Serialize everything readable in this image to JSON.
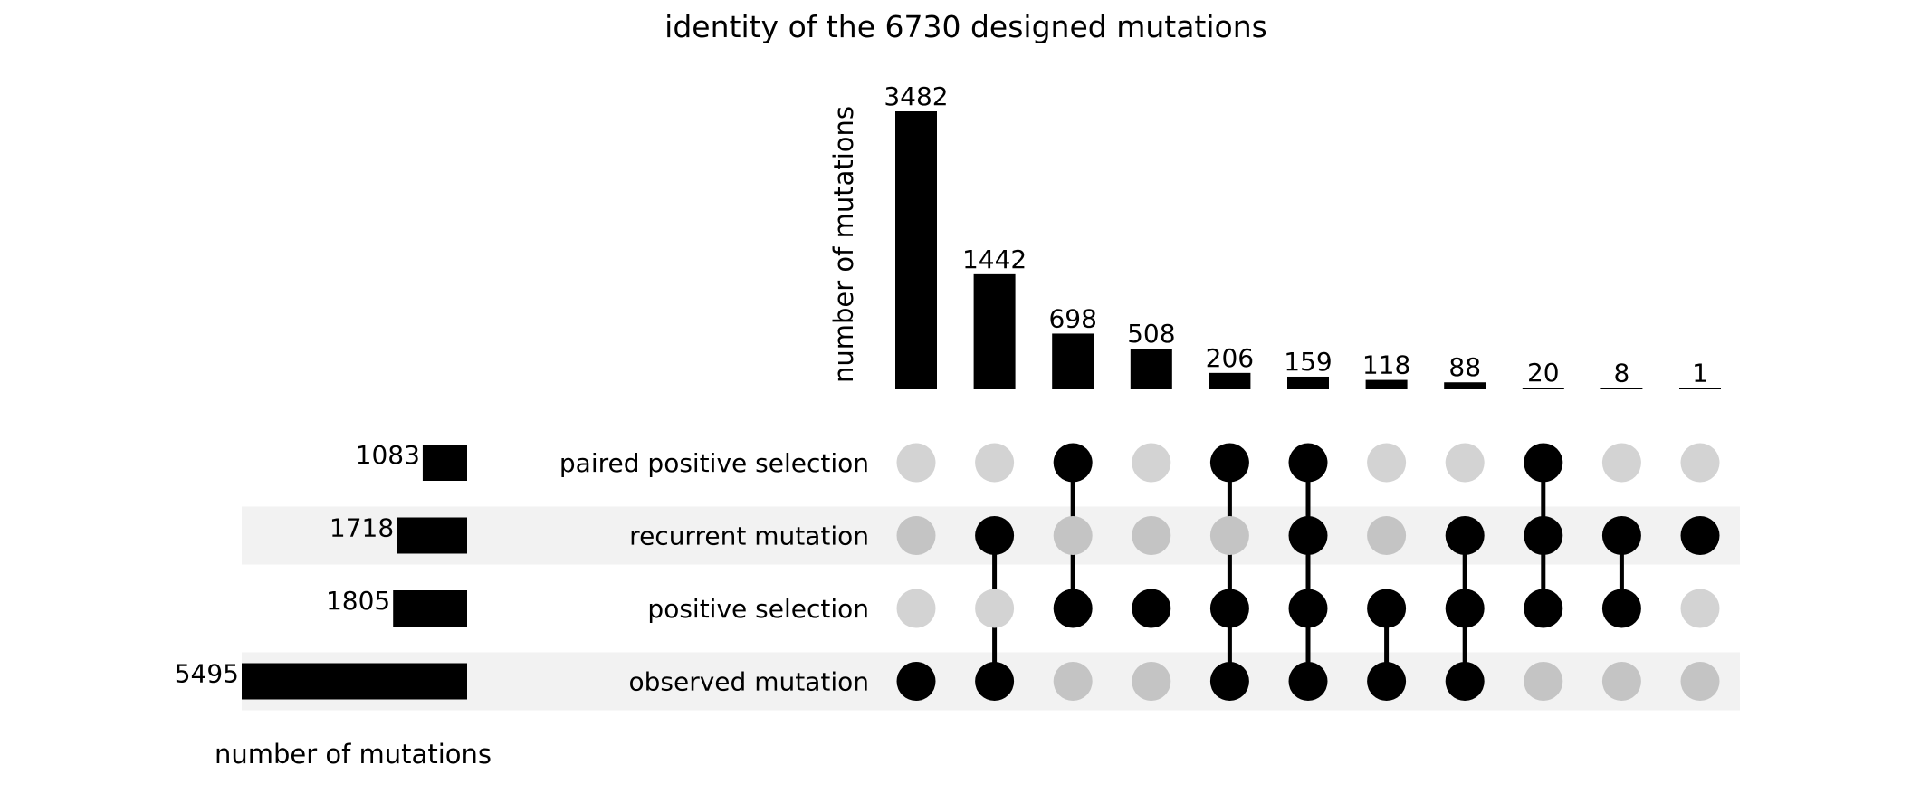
{
  "chart_data": {
    "type": "upset",
    "title": "identity of the 6730 designed mutations",
    "intersection_ylabel": "number of mutations",
    "set_size_xlabel": "number of mutations",
    "sets": [
      {
        "name": "paired positive selection",
        "size": 1083
      },
      {
        "name": "recurrent mutation",
        "size": 1718
      },
      {
        "name": "positive selection",
        "size": 1805
      },
      {
        "name": "observed mutation",
        "size": 5495
      }
    ],
    "intersections": [
      {
        "value": 3482,
        "members": [
          "observed mutation"
        ]
      },
      {
        "value": 1442,
        "members": [
          "recurrent mutation",
          "observed mutation"
        ]
      },
      {
        "value": 698,
        "members": [
          "paired positive selection",
          "positive selection"
        ]
      },
      {
        "value": 508,
        "members": [
          "positive selection"
        ]
      },
      {
        "value": 206,
        "members": [
          "paired positive selection",
          "positive selection",
          "observed mutation"
        ]
      },
      {
        "value": 159,
        "members": [
          "paired positive selection",
          "recurrent mutation",
          "positive selection",
          "observed mutation"
        ]
      },
      {
        "value": 118,
        "members": [
          "positive selection",
          "observed mutation"
        ]
      },
      {
        "value": 88,
        "members": [
          "recurrent mutation",
          "positive selection",
          "observed mutation"
        ]
      },
      {
        "value": 20,
        "members": [
          "paired positive selection",
          "recurrent mutation",
          "positive selection"
        ]
      },
      {
        "value": 8,
        "members": [
          "recurrent mutation",
          "positive selection"
        ]
      },
      {
        "value": 1,
        "members": [
          "recurrent mutation"
        ]
      }
    ],
    "colors": {
      "bar": "#000000",
      "dot_active": "#000000",
      "dot_inactive_white_row": "#d3d3d3",
      "dot_inactive_shaded_row": "#c4c4c4",
      "row_shade": "#f2f2f2"
    }
  }
}
